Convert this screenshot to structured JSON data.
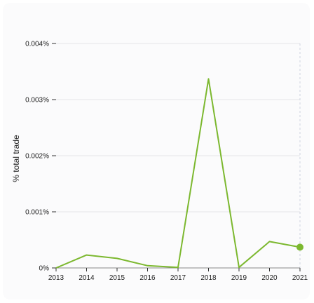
{
  "chart_data": {
    "type": "line",
    "title": "",
    "xlabel": "",
    "ylabel": "% total trade",
    "x": [
      "2013",
      "2014",
      "2015",
      "2016",
      "2017",
      "2018",
      "2019",
      "2020",
      "2021"
    ],
    "y_ticks": [
      {
        "value": 0,
        "label": "0%"
      },
      {
        "value": 0.001,
        "label": "0.001%"
      },
      {
        "value": 0.002,
        "label": "0.002%"
      },
      {
        "value": 0.003,
        "label": "0.003%"
      },
      {
        "value": 0.004,
        "label": "0.004%"
      }
    ],
    "ylim": [
      0,
      0.004
    ],
    "series": [
      {
        "values": [
          0.0,
          0.00023,
          0.00017,
          4e-05,
          1e-05,
          0.00337,
          1e-05,
          0.00047,
          0.00037
        ],
        "color": "#7cb82f"
      }
    ],
    "grid": true,
    "highlight_last_point": true
  }
}
